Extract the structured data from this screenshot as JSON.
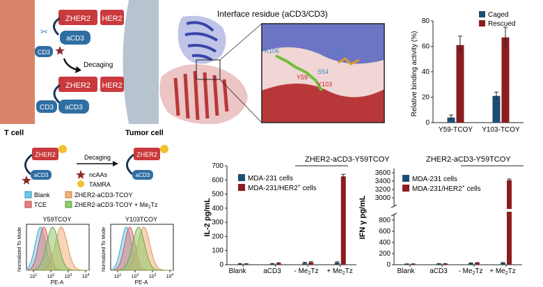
{
  "colors": {
    "caged": "#1d4e72",
    "rescued": "#8b1c1f",
    "zher2": "#c93a3c",
    "acd3": "#2f6ea3",
    "tcell": "#d9846a",
    "tumor": "#b8c3d0",
    "protein_blue": "#4a55b0",
    "protein_red": "#b8383a",
    "residue_green": "#6fbf3a",
    "tamra": "#f2c12e",
    "ncaa": "#8b2a2a",
    "blank": "#6fc8e8",
    "tce": "#e88080",
    "y59_peak": "#f0b27a",
    "y59_tz": "#8fc96b"
  },
  "panel_a": {
    "t_cell": "T cell",
    "tumor_cell": "Tumor cell",
    "zher2": "ZHER2",
    "her2": "HER2",
    "acd3": "aCD3",
    "cd3": "CD3",
    "decaging": "Decaging"
  },
  "panel_b": {
    "title": "Interface residue (aCD3/CD3)",
    "residues": {
      "k106": "K106",
      "y32": "Y32",
      "s54": "S54",
      "y59": "Y59",
      "y103": "Y103"
    }
  },
  "panel_c": {
    "legend": [
      "Caged",
      "Rescued"
    ],
    "ylabel": "Relative binding activity (%)"
  },
  "panel_d": {
    "zher2": "ZHER2",
    "acd3": "aCD3",
    "decaging": "Decaging",
    "ncaas": "ncAAs",
    "tamra": "TAMRA",
    "legend": {
      "blank": "Blank",
      "tce": "TCE",
      "tcoy": "ZHER2-aCD3-TCOY",
      "tcoy_tz": "ZHER2-aCD3-TCOY + Me",
      "tz_sub": "2",
      "tz_end": "Tz"
    },
    "hist1_title": "Y59TCOY",
    "hist2_title": "Y103TCOY",
    "ylabel_line1": "Normalized To Mode",
    "xlabel": "PE-A",
    "tick_base": "10",
    "tick_exps": [
      "1",
      "2",
      "3",
      "4"
    ]
  },
  "panel_e": {
    "title": "ZHER2-aCD3-Y59TCOY",
    "ylabel": "IL-2 pg/mL",
    "legend_1": "MDA-231 cells",
    "legend_2_main": "MDA-231/HER2",
    "legend_2_sup": "+",
    "legend_2_end": " cells",
    "x_cat_blank": "Blank",
    "x_cat_acd3": "aCD3",
    "x_cat_minus": "- Me",
    "x_cat_plus": "+ Me",
    "x_sub": "2",
    "x_end": "Tz"
  },
  "panel_f": {
    "title": "ZHER2-aCD3-Y59TCOY",
    "ylabel": "IFN γ pg/mL",
    "legend_1": "MDA-231 cells",
    "legend_2_main": "MDA-231/HER2",
    "legend_2_sup": "+",
    "legend_2_end": " cells",
    "x_cat_blank": "Blank",
    "x_cat_acd3": "aCD3",
    "x_cat_minus": "- Me",
    "x_cat_plus": "+ Me",
    "x_sub": "2",
    "x_end": "Tz"
  },
  "chart_data": [
    {
      "id": "binding",
      "type": "bar",
      "categories": [
        "Y59-TCOY",
        "Y103-TCOY"
      ],
      "series": [
        {
          "name": "Caged",
          "values": [
            4,
            21
          ],
          "errors": [
            2,
            3
          ]
        },
        {
          "name": "Rescued",
          "values": [
            61,
            67
          ],
          "errors": [
            7,
            8
          ]
        }
      ],
      "ylabel": "Relative binding activity (%)",
      "ylim": [
        0,
        80
      ],
      "yticks": [
        0,
        20,
        40,
        60,
        80
      ],
      "legend": "top-right"
    },
    {
      "id": "il2",
      "type": "bar",
      "title": "ZHER2-aCD3-Y59TCOY",
      "categories": [
        "Blank",
        "aCD3",
        "- Me2Tz",
        "+ Me2Tz"
      ],
      "series": [
        {
          "name": "MDA-231 cells",
          "values": [
            5,
            6,
            12,
            15
          ],
          "errors": [
            3,
            3,
            5,
            6
          ]
        },
        {
          "name": "MDA-231/HER2+ cells",
          "values": [
            4,
            10,
            16,
            625
          ],
          "errors": [
            3,
            4,
            5,
            15
          ]
        }
      ],
      "ylabel": "IL-2 pg/mL",
      "ylim": [
        0,
        700
      ],
      "yticks": [
        0,
        100,
        200,
        300,
        400,
        500,
        600,
        700
      ],
      "legend": "top-left"
    },
    {
      "id": "ifn",
      "type": "bar",
      "title": "ZHER2-aCD3-Y59TCOY",
      "categories": [
        "Blank",
        "aCD3",
        "- Me2Tz",
        "+ Me2Tz"
      ],
      "series": [
        {
          "name": "MDA-231 cells",
          "values": [
            10,
            15,
            25,
            30
          ],
          "errors": [
            5,
            5,
            8,
            8
          ]
        },
        {
          "name": "MDA-231/HER2+ cells",
          "values": [
            10,
            15,
            30,
            3420
          ],
          "errors": [
            5,
            5,
            8,
            30
          ]
        }
      ],
      "ylabel": "IFN γ pg/mL",
      "axis_break": [
        900,
        2800
      ],
      "yticks": [
        0,
        200,
        400,
        600,
        800,
        3000,
        3200,
        3400,
        3600
      ],
      "legend": "top-left"
    },
    {
      "id": "hist_y59",
      "type": "area",
      "title": "Y59TCOY",
      "xlabel": "PE-A",
      "x_scale": "log",
      "series": [
        {
          "name": "Blank",
          "peak": 1.4,
          "width": 0.3
        },
        {
          "name": "TCE",
          "peak": 1.6,
          "width": 0.3
        },
        {
          "name": "ZHER2-aCD3-TCOY",
          "peak": 2.6,
          "width": 0.35
        },
        {
          "name": "ZHER2-aCD3-TCOY + Me2Tz",
          "peak": 2.1,
          "width": 0.35
        }
      ]
    },
    {
      "id": "hist_y103",
      "type": "area",
      "title": "Y103TCOY",
      "xlabel": "PE-A",
      "x_scale": "log",
      "series": [
        {
          "name": "Blank",
          "peak": 1.5,
          "width": 0.3
        },
        {
          "name": "TCE",
          "peak": 1.7,
          "width": 0.3
        },
        {
          "name": "ZHER2-aCD3-TCOY",
          "peak": 2.5,
          "width": 0.35
        },
        {
          "name": "ZHER2-aCD3-TCOY + Me2Tz",
          "peak": 2.2,
          "width": 0.35
        }
      ]
    }
  ]
}
